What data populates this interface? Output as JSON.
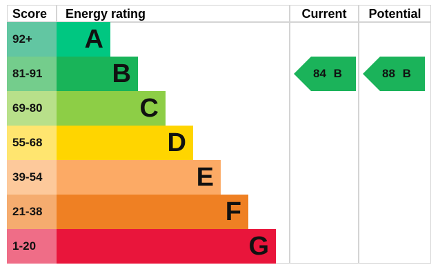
{
  "chart_data": {
    "type": "table",
    "headers": {
      "score": "Score",
      "rating": "Energy rating",
      "current": "Current",
      "potential": "Potential"
    },
    "bands": [
      {
        "score": "92+",
        "letter": "A",
        "color": "#00c781",
        "score_color": "#62c6a2"
      },
      {
        "score": "81-91",
        "letter": "B",
        "color": "#19b459",
        "score_color": "#74cd8c"
      },
      {
        "score": "69-80",
        "letter": "C",
        "color": "#8dce46",
        "score_color": "#b8e08a"
      },
      {
        "score": "55-68",
        "letter": "D",
        "color": "#ffd500",
        "score_color": "#ffe56f"
      },
      {
        "score": "39-54",
        "letter": "E",
        "color": "#fcaa65",
        "score_color": "#fdc99b"
      },
      {
        "score": "21-38",
        "letter": "F",
        "color": "#ef8023",
        "score_color": "#f5ac6f"
      },
      {
        "score": "1-20",
        "letter": "G",
        "color": "#e9153b",
        "score_color": "#ef6d87"
      }
    ],
    "current": {
      "value": 84,
      "letter": "B",
      "label": "84 B",
      "color": "#1bb35a"
    },
    "potential": {
      "value": 88,
      "letter": "B",
      "label": "88 B",
      "color": "#1bb35a"
    }
  }
}
